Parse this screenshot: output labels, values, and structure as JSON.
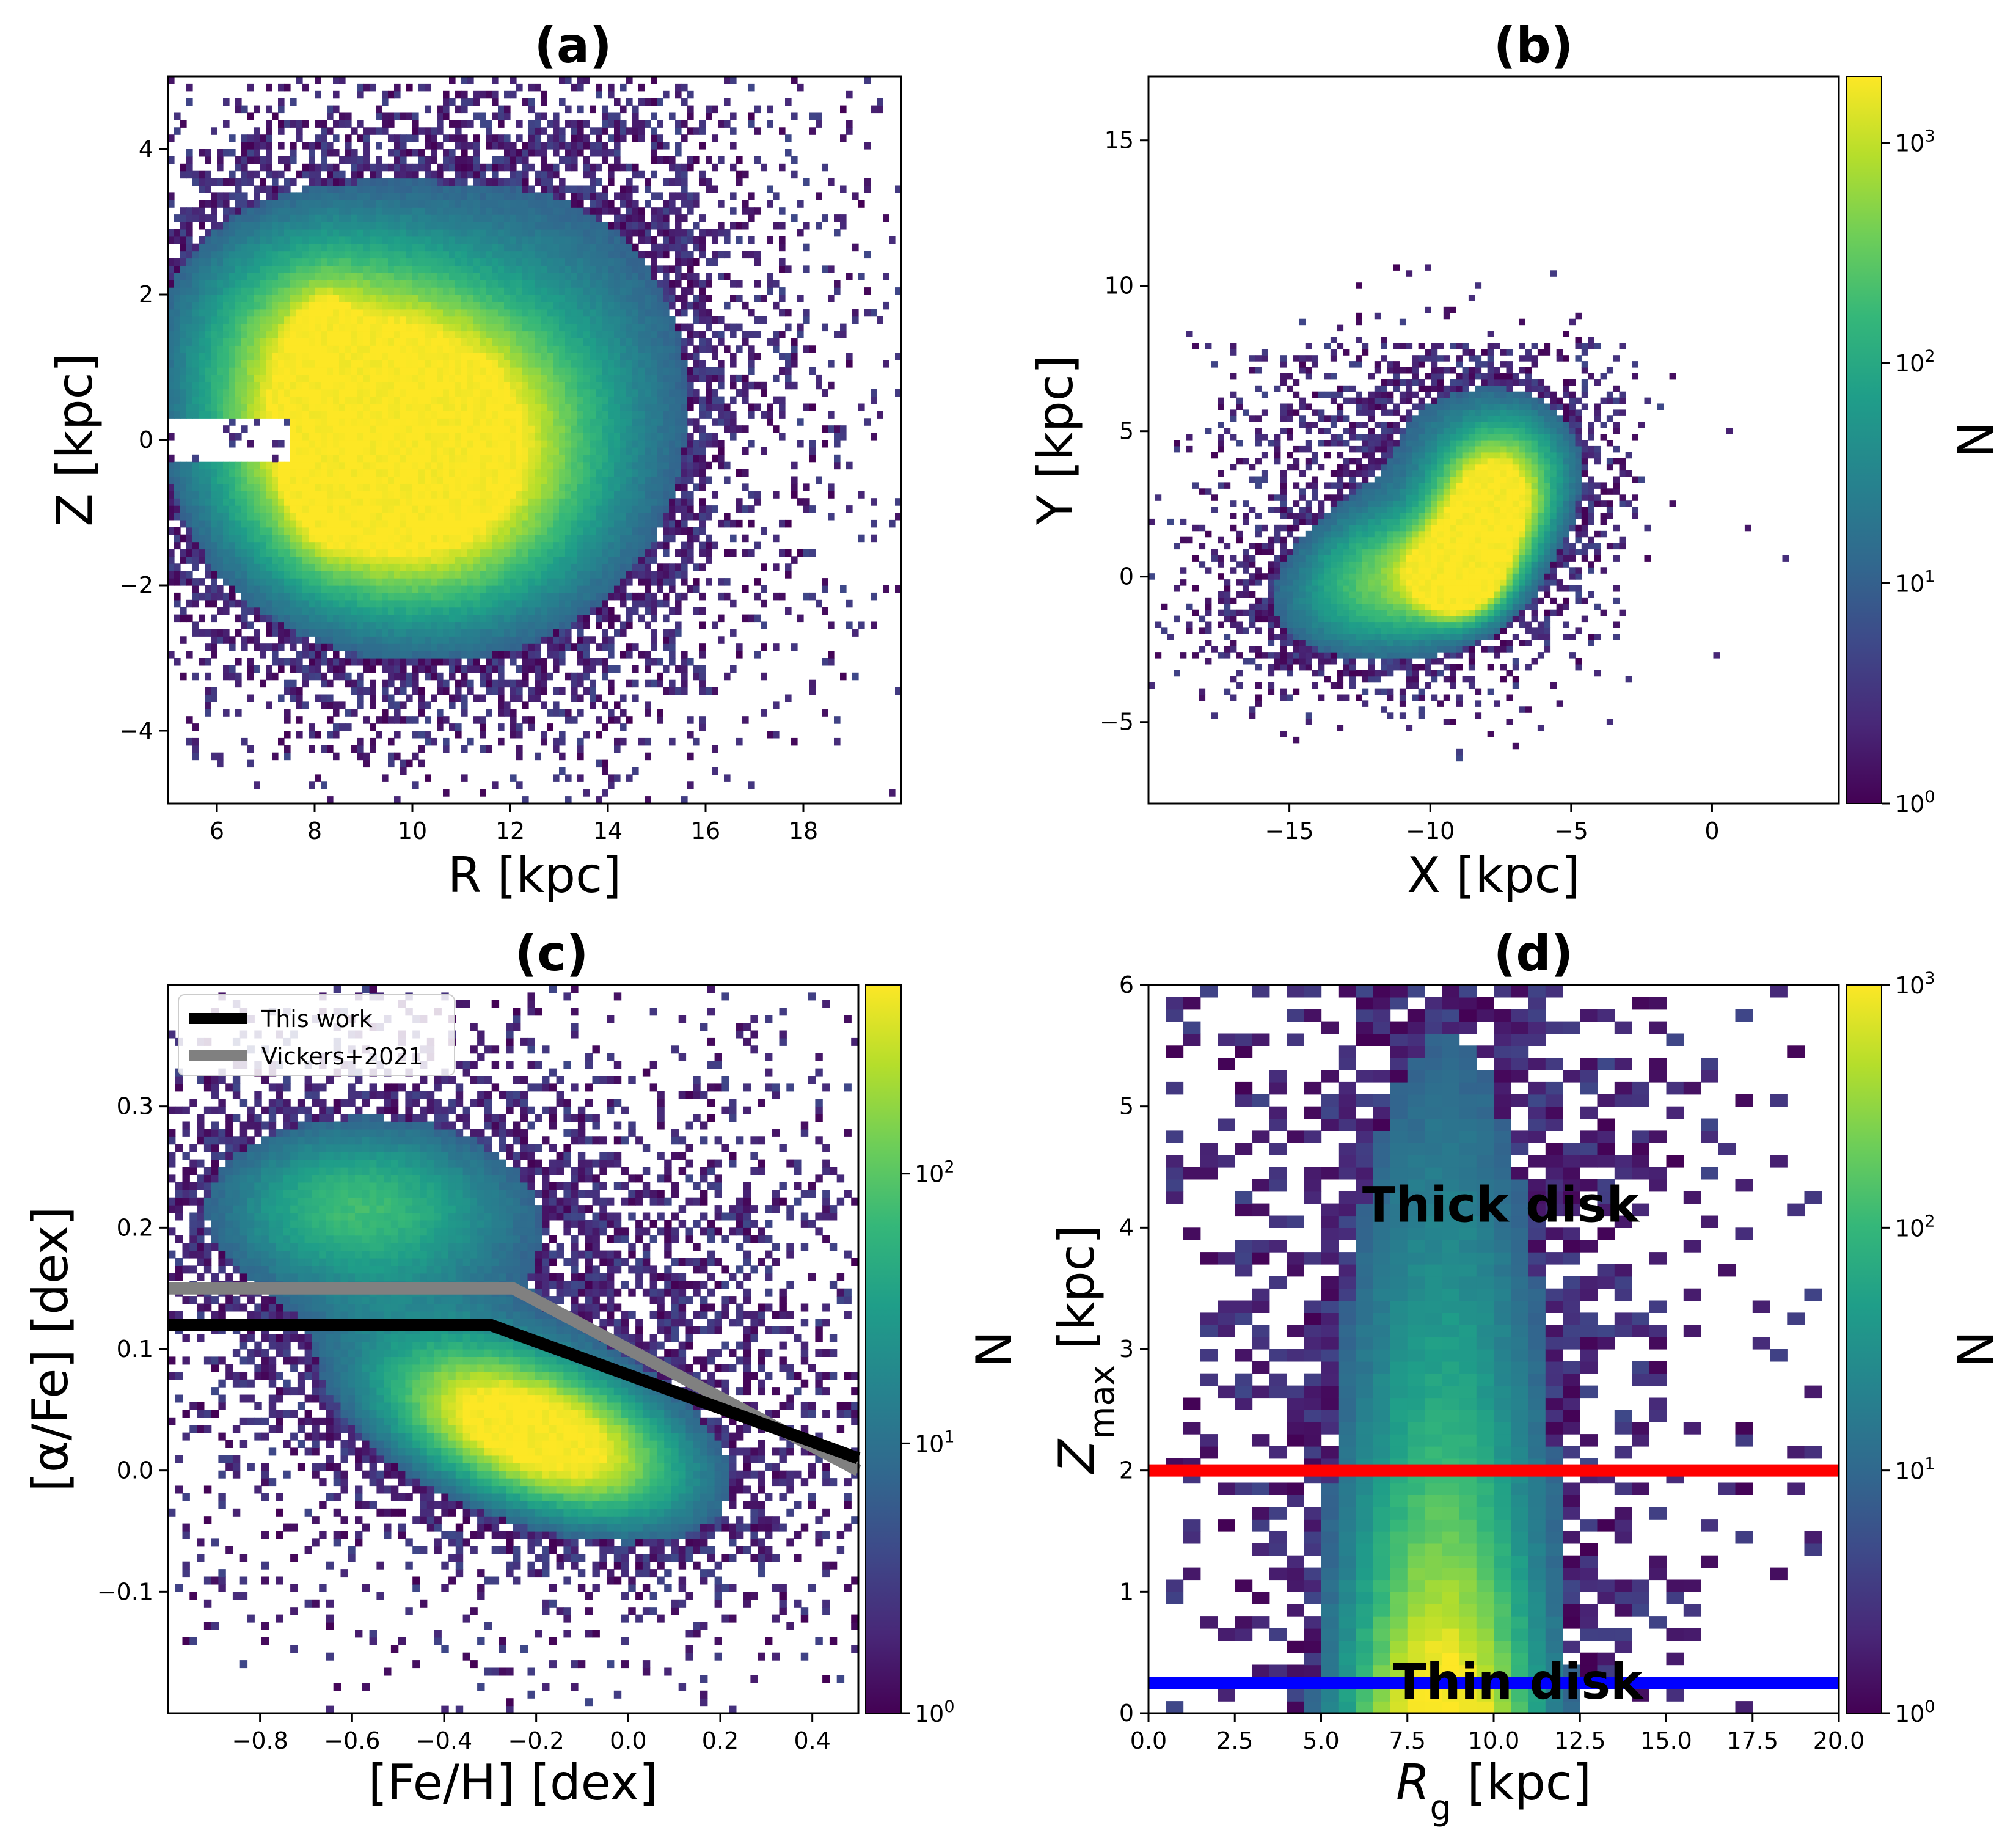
{
  "colors": {
    "viridis": [
      "#440154",
      "#482878",
      "#3e4989",
      "#31688e",
      "#26828e",
      "#1f9e89",
      "#35b779",
      "#6ece58",
      "#b5de2b",
      "#fde725"
    ],
    "this_work_line": "#000000",
    "vickers_line": "#808080",
    "red_line": "#ff0000",
    "blue_line": "#0000ff"
  },
  "chart_data": [
    {
      "id": "a",
      "type": "heatmap",
      "title": "(a)",
      "xlabel": "R [kpc]",
      "ylabel": "Z [kpc]",
      "xlim": [
        5,
        20
      ],
      "ylim": [
        -5,
        5
      ],
      "xticks": [
        6,
        8,
        10,
        12,
        14,
        16,
        18
      ],
      "xticklabels": [
        "6",
        "8",
        "10",
        "12",
        "14",
        "16",
        "18"
      ],
      "yticks": [
        -4,
        -2,
        0,
        2,
        4
      ],
      "yticklabels": [
        "−4",
        "−2",
        "0",
        "2",
        "4"
      ],
      "color_scale": "log",
      "colormap": "viridis",
      "density_peak": {
        "R": 8.2,
        "Z": 0.3
      }
    },
    {
      "id": "b",
      "type": "heatmap",
      "title": "(b)",
      "xlabel": "X [kpc]",
      "ylabel": "Y [kpc]",
      "xlim": [
        -20,
        4.5
      ],
      "ylim": [
        -7.8,
        17.2
      ],
      "xticks": [
        -15,
        -10,
        -5,
        0
      ],
      "xticklabels": [
        "−15",
        "−10",
        "−5",
        "0"
      ],
      "yticks": [
        -5,
        0,
        5,
        10,
        15
      ],
      "yticklabels": [
        "−5",
        "0",
        "5",
        "10",
        "15"
      ],
      "color_scale": "log",
      "colormap": "viridis",
      "density_peak": {
        "X": -9.0,
        "Y": 0.0
      },
      "colorbar": {
        "label": "N",
        "range": [
          1,
          2000
        ],
        "ticks": [
          1,
          10,
          100,
          1000
        ],
        "ticklabels": [
          "10",
          "10",
          "10",
          "10"
        ],
        "exponents": [
          "0",
          "1",
          "2",
          "3"
        ]
      }
    },
    {
      "id": "c",
      "type": "heatmap",
      "title": "(c)",
      "xlabel": "[Fe/H] [dex]",
      "ylabel": "[α/Fe] [dex]",
      "xlim": [
        -1.0,
        0.5
      ],
      "ylim": [
        -0.2,
        0.4
      ],
      "xticks": [
        -0.8,
        -0.6,
        -0.4,
        -0.2,
        0.0,
        0.2,
        0.4
      ],
      "xticklabels": [
        "−0.8",
        "−0.6",
        "−0.4",
        "−0.2",
        "0.0",
        "0.2",
        "0.4"
      ],
      "yticks": [
        -0.1,
        0.0,
        0.1,
        0.2,
        0.3
      ],
      "yticklabels": [
        "−0.1",
        "0.0",
        "0.1",
        "0.2",
        "0.3"
      ],
      "color_scale": "log",
      "colormap": "viridis",
      "density_peak": {
        "feh": -0.2,
        "afe": 0.03
      },
      "series": [
        {
          "name": "This work",
          "x": [
            -1.0,
            -0.3,
            0.5
          ],
          "y": [
            0.12,
            0.12,
            0.01
          ]
        },
        {
          "name": "Vickers+2021",
          "x": [
            -1.0,
            -0.25,
            0.5
          ],
          "y": [
            0.15,
            0.15,
            0.0
          ]
        }
      ],
      "legend": {
        "position": "top-left",
        "entries": [
          "This work",
          "Vickers+2021"
        ]
      },
      "colorbar": {
        "label": "N",
        "range": [
          1,
          500
        ],
        "ticks": [
          1,
          10,
          100
        ],
        "ticklabels": [
          "10",
          "10",
          "10"
        ],
        "exponents": [
          "0",
          "1",
          "2"
        ]
      }
    },
    {
      "id": "d",
      "type": "heatmap",
      "title": "(d)",
      "xlabel": "Rg [kpc]",
      "ylabel": "Zmax [kpc]",
      "xlim": [
        0,
        20
      ],
      "ylim": [
        0,
        6
      ],
      "xticks": [
        0,
        2.5,
        5,
        7.5,
        10,
        12.5,
        15,
        17.5,
        20
      ],
      "xticklabels": [
        "0.0",
        "2.5",
        "5.0",
        "7.5",
        "10.0",
        "12.5",
        "15.0",
        "17.5",
        "20.0"
      ],
      "yticks": [
        0,
        1,
        2,
        3,
        4,
        5,
        6
      ],
      "yticklabels": [
        "0",
        "1",
        "2",
        "3",
        "4",
        "5",
        "6"
      ],
      "color_scale": "log",
      "colormap": "viridis",
      "density_peak": {
        "Rg": 8.5,
        "Zmax": 0.6
      },
      "hlines": [
        {
          "y": 2.0,
          "color": "red"
        },
        {
          "y": 0.25,
          "color": "blue"
        }
      ],
      "annotations": [
        {
          "text": "Thick disk",
          "x": 10.2,
          "y": 4.05
        },
        {
          "text": "Thin disk",
          "x": 10.7,
          "y": 0.12
        }
      ],
      "colorbar": {
        "label": "N",
        "range": [
          1,
          1000
        ],
        "ticks": [
          1,
          10,
          100,
          1000
        ],
        "ticklabels": [
          "10",
          "10",
          "10",
          "10"
        ],
        "exponents": [
          "0",
          "1",
          "2",
          "3"
        ]
      }
    }
  ]
}
